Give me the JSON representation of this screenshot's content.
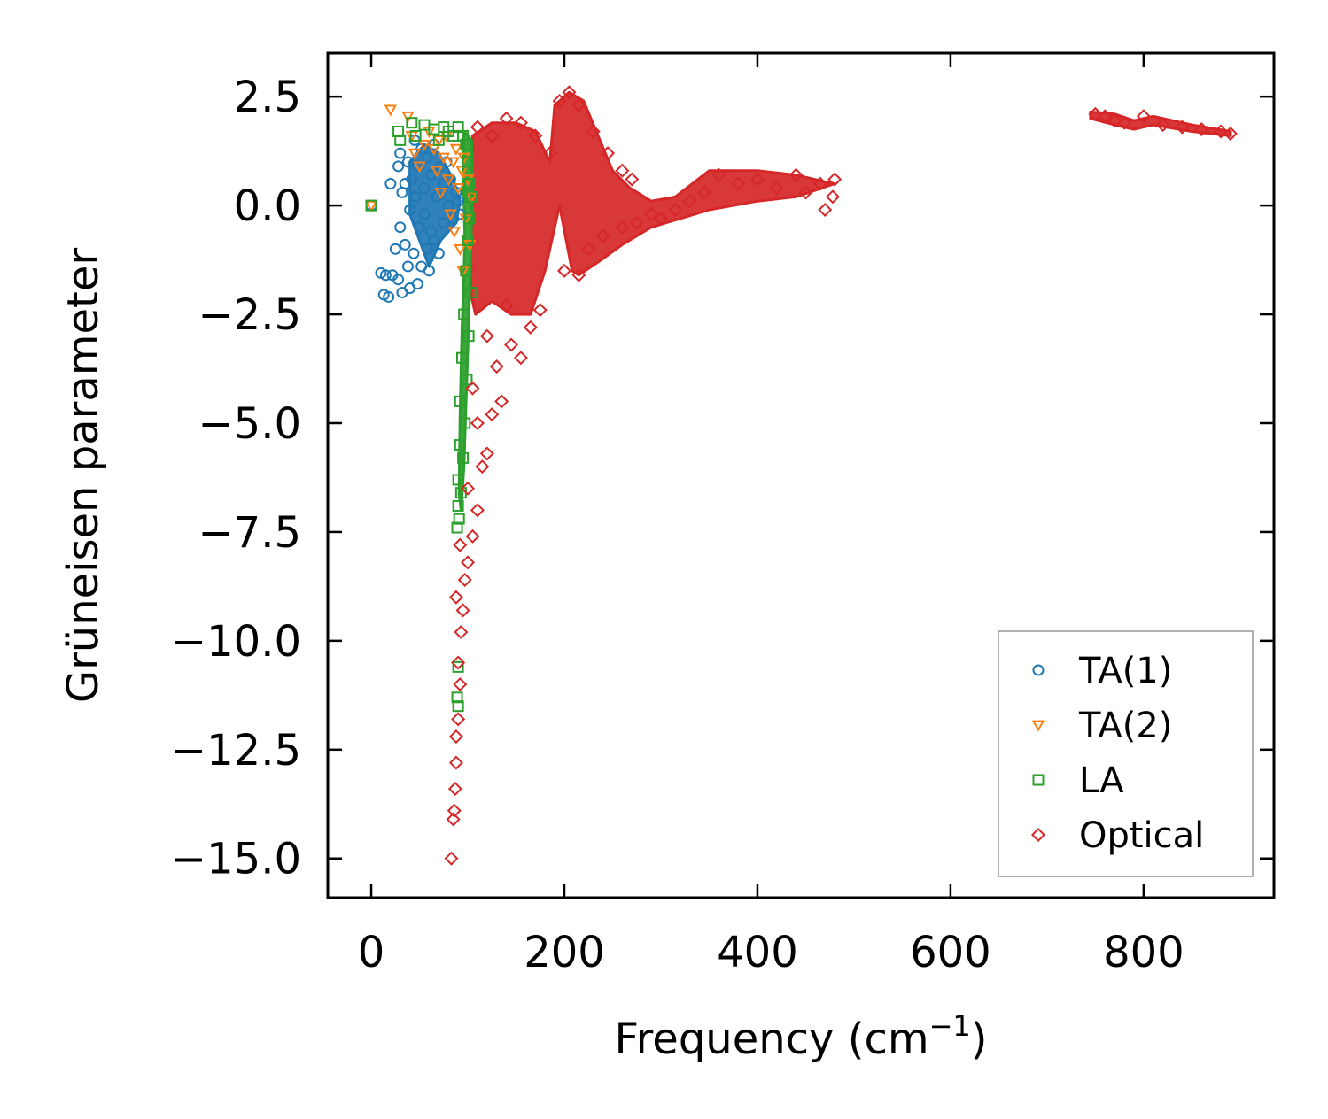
{
  "chart_data": {
    "type": "scatter",
    "title": "",
    "xlabel": "Frequency (cm",
    "xlabel_sup": "−1",
    "xlabel_suffix": ")",
    "ylabel": "Grüneisen parameter",
    "xlim": [
      -45,
      935
    ],
    "ylim": [
      -15.9,
      3.5
    ],
    "xticks": [
      0,
      200,
      400,
      600,
      800
    ],
    "xtick_labels": [
      "0",
      "200",
      "400",
      "600",
      "800"
    ],
    "yticks": [
      2.5,
      0,
      -2.5,
      -5,
      -7.5,
      -10,
      -12.5,
      -15
    ],
    "ytick_labels": [
      "2.5",
      "0.0",
      "−2.5",
      "−5.0",
      "−7.5",
      "−10.0",
      "−12.5",
      "−15.0"
    ],
    "grid": false,
    "legend_position": "bottom-right",
    "series": [
      {
        "name": "TA(1)",
        "color": "#1f77b4",
        "marker": "circle",
        "points": [
          [
            0,
            0
          ],
          [
            10,
            -1.55
          ],
          [
            13,
            -2.05
          ],
          [
            15,
            -1.6
          ],
          [
            18,
            -2.1
          ],
          [
            20,
            0.5
          ],
          [
            22,
            -1.6
          ],
          [
            25,
            -1.0
          ],
          [
            28,
            0.9
          ],
          [
            28,
            -1.7
          ],
          [
            30,
            1.2
          ],
          [
            30,
            -0.5
          ],
          [
            32,
            -2.0
          ],
          [
            32,
            0.3
          ],
          [
            35,
            -0.9
          ],
          [
            35,
            0.5
          ],
          [
            38,
            -1.4
          ],
          [
            38,
            1.0
          ],
          [
            40,
            -0.1
          ],
          [
            40,
            -1.9
          ],
          [
            42,
            0.6
          ],
          [
            44,
            -1.1
          ],
          [
            45,
            1.5
          ],
          [
            46,
            0.2
          ],
          [
            48,
            -1.8
          ],
          [
            48,
            0.9
          ],
          [
            50,
            -0.5
          ],
          [
            52,
            1.3
          ],
          [
            52,
            -1.4
          ],
          [
            55,
            0.4
          ],
          [
            55,
            -0.2
          ],
          [
            58,
            1.1
          ],
          [
            58,
            -1.0
          ],
          [
            60,
            -1.5
          ],
          [
            62,
            0.7
          ],
          [
            62,
            -0.6
          ],
          [
            65,
            1.4
          ],
          [
            65,
            -0.8
          ],
          [
            68,
            0.2
          ],
          [
            70,
            -1.1
          ],
          [
            72,
            0.9
          ],
          [
            75,
            0.5
          ],
          [
            75,
            -0.4
          ],
          [
            78,
            1.0
          ],
          [
            80,
            0.0
          ],
          [
            82,
            0.6
          ],
          [
            85,
            -0.3
          ],
          [
            88,
            0.3
          ],
          [
            90,
            0.1
          ],
          [
            92,
            -0.2
          ]
        ]
      },
      {
        "name": "TA(2)",
        "color": "#ff7f0e",
        "marker": "triangle-down",
        "points": [
          [
            0,
            0
          ],
          [
            20,
            2.2
          ],
          [
            38,
            2.05
          ],
          [
            42,
            1.6
          ],
          [
            45,
            1.2
          ],
          [
            50,
            0.9
          ],
          [
            55,
            1.4
          ],
          [
            60,
            1.7
          ],
          [
            65,
            1.3
          ],
          [
            68,
            0.8
          ],
          [
            70,
            1.5
          ],
          [
            72,
            0.3
          ],
          [
            75,
            1.1
          ],
          [
            78,
            1.6
          ],
          [
            80,
            0.6
          ],
          [
            82,
            -0.2
          ],
          [
            85,
            1.0
          ],
          [
            86,
            -0.6
          ],
          [
            88,
            1.3
          ],
          [
            90,
            0.4
          ],
          [
            92,
            -1.0
          ],
          [
            94,
            0.8
          ],
          [
            95,
            -1.5
          ],
          [
            96,
            1.1
          ],
          [
            98,
            -0.3
          ],
          [
            100,
            0.6
          ],
          [
            102,
            -0.9
          ],
          [
            104,
            0.2
          ]
        ]
      },
      {
        "name": "LA",
        "color": "#2ca02c",
        "marker": "square",
        "points": [
          [
            0,
            0
          ],
          [
            28,
            1.7
          ],
          [
            30,
            1.5
          ],
          [
            42,
            1.9
          ],
          [
            46,
            1.6
          ],
          [
            55,
            1.85
          ],
          [
            65,
            1.75
          ],
          [
            70,
            1.5
          ],
          [
            75,
            1.8
          ],
          [
            80,
            1.7
          ],
          [
            85,
            1.6
          ],
          [
            90,
            1.8
          ],
          [
            95,
            1.6
          ],
          [
            98,
            1.4
          ],
          [
            100,
            1.0
          ],
          [
            102,
            0.5
          ],
          [
            104,
            0.2
          ],
          [
            100,
            -0.8
          ],
          [
            98,
            -1.5
          ],
          [
            96,
            -2.5
          ],
          [
            94,
            -3.5
          ],
          [
            92,
            -4.5
          ],
          [
            92,
            -5.5
          ],
          [
            90,
            -6.3
          ],
          [
            90,
            -6.9
          ],
          [
            89,
            -7.4
          ],
          [
            90,
            -10.6
          ],
          [
            89,
            -11.3
          ],
          [
            90,
            -11.5
          ],
          [
            102,
            -0.3
          ],
          [
            103,
            -2.0
          ],
          [
            101,
            -3.0
          ],
          [
            99,
            -4.0
          ],
          [
            97,
            -5.0
          ],
          [
            95,
            -5.8
          ],
          [
            93,
            -6.6
          ],
          [
            91,
            -7.2
          ]
        ]
      },
      {
        "name": "Optical",
        "color": "#d62728",
        "marker": "diamond",
        "points": [
          [
            83,
            -15.0
          ],
          [
            85,
            -14.1
          ],
          [
            86,
            -13.9
          ],
          [
            87,
            -13.4
          ],
          [
            88,
            -12.8
          ],
          [
            88,
            -12.2
          ],
          [
            90,
            -11.8
          ],
          [
            92,
            -11.0
          ],
          [
            90,
            -10.5
          ],
          [
            93,
            -9.8
          ],
          [
            95,
            -9.3
          ],
          [
            88,
            -9.0
          ],
          [
            97,
            -8.6
          ],
          [
            100,
            -8.2
          ],
          [
            92,
            -7.8
          ],
          [
            105,
            -7.6
          ],
          [
            110,
            -7.0
          ],
          [
            100,
            -6.5
          ],
          [
            115,
            -6.0
          ],
          [
            120,
            -5.7
          ],
          [
            110,
            -5.0
          ],
          [
            125,
            -4.8
          ],
          [
            135,
            -4.5
          ],
          [
            105,
            -4.2
          ],
          [
            130,
            -3.7
          ],
          [
            155,
            -3.5
          ],
          [
            145,
            -3.2
          ],
          [
            120,
            -3.0
          ],
          [
            165,
            -2.8
          ],
          [
            140,
            -2.3
          ],
          [
            175,
            -2.4
          ],
          [
            200,
            -1.5
          ],
          [
            215,
            -1.6
          ],
          [
            225,
            -1.0
          ],
          [
            240,
            -0.7
          ],
          [
            260,
            -0.5
          ],
          [
            275,
            -0.4
          ],
          [
            290,
            -0.2
          ],
          [
            300,
            -0.3
          ],
          [
            315,
            -0.1
          ],
          [
            330,
            0.1
          ],
          [
            345,
            0.3
          ],
          [
            360,
            0.7
          ],
          [
            380,
            0.5
          ],
          [
            400,
            0.6
          ],
          [
            420,
            0.4
          ],
          [
            440,
            0.7
          ],
          [
            450,
            0.3
          ],
          [
            465,
            0.5
          ],
          [
            470,
            -0.1
          ],
          [
            478,
            0.2
          ],
          [
            480,
            0.6
          ],
          [
            750,
            2.1
          ],
          [
            760,
            2.05
          ],
          [
            770,
            1.95
          ],
          [
            780,
            1.9
          ],
          [
            800,
            2.05
          ],
          [
            820,
            1.85
          ],
          [
            840,
            1.8
          ],
          [
            860,
            1.75
          ],
          [
            880,
            1.7
          ],
          [
            890,
            1.65
          ],
          [
            110,
            1.8
          ],
          [
            125,
            1.6
          ],
          [
            140,
            2.0
          ],
          [
            155,
            1.9
          ],
          [
            170,
            1.6
          ],
          [
            185,
            1.2
          ],
          [
            195,
            2.4
          ],
          [
            205,
            2.6
          ],
          [
            215,
            2.3
          ],
          [
            230,
            1.7
          ],
          [
            245,
            1.2
          ],
          [
            260,
            0.8
          ],
          [
            270,
            0.6
          ]
        ]
      }
    ]
  },
  "dense_bands": [
    {
      "series": "Optical",
      "color": "#d62728",
      "polygon": [
        [
          105,
          1.6
        ],
        [
          125,
          1.9
        ],
        [
          150,
          1.9
        ],
        [
          170,
          1.7
        ],
        [
          185,
          1.0
        ],
        [
          190,
          2.3
        ],
        [
          205,
          2.6
        ],
        [
          220,
          2.4
        ],
        [
          235,
          1.6
        ],
        [
          250,
          0.8
        ],
        [
          268,
          0.4
        ],
        [
          290,
          0.1
        ],
        [
          315,
          0.2
        ],
        [
          350,
          0.8
        ],
        [
          400,
          0.8
        ],
        [
          440,
          0.7
        ],
        [
          478,
          0.5
        ],
        [
          480,
          0.5
        ],
        [
          440,
          0.2
        ],
        [
          400,
          0.1
        ],
        [
          350,
          -0.1
        ],
        [
          320,
          -0.3
        ],
        [
          290,
          -0.5
        ],
        [
          260,
          -0.9
        ],
        [
          235,
          -1.3
        ],
        [
          215,
          -1.6
        ],
        [
          208,
          -1.5
        ],
        [
          195,
          0.0
        ],
        [
          180,
          -1.5
        ],
        [
          165,
          -2.5
        ],
        [
          145,
          -2.5
        ],
        [
          125,
          -2.2
        ],
        [
          108,
          -2.5
        ],
        [
          103,
          -2.0
        ]
      ]
    },
    {
      "series": "Optical",
      "color": "#d62728",
      "polygon": [
        [
          745,
          2.15
        ],
        [
          770,
          2.1
        ],
        [
          790,
          1.95
        ],
        [
          810,
          2.05
        ],
        [
          850,
          1.85
        ],
        [
          890,
          1.7
        ],
        [
          890,
          1.6
        ],
        [
          850,
          1.7
        ],
        [
          810,
          1.85
        ],
        [
          790,
          1.75
        ],
        [
          770,
          1.85
        ],
        [
          745,
          2.0
        ]
      ]
    },
    {
      "series": "TA(1)",
      "color": "#1f77b4",
      "polygon": [
        [
          40,
          1.0
        ],
        [
          55,
          1.4
        ],
        [
          70,
          1.2
        ],
        [
          85,
          0.6
        ],
        [
          92,
          0.1
        ],
        [
          88,
          -0.4
        ],
        [
          72,
          -0.8
        ],
        [
          60,
          -1.4
        ],
        [
          50,
          -0.8
        ],
        [
          40,
          -0.2
        ]
      ]
    },
    {
      "series": "LA",
      "color": "#2ca02c",
      "polygon": [
        [
          96,
          1.7
        ],
        [
          104,
          1.5
        ],
        [
          105,
          0.5
        ],
        [
          102,
          -2.0
        ],
        [
          99,
          -4.0
        ],
        [
          96,
          -6.0
        ],
        [
          93,
          -7.0
        ],
        [
          91,
          -6.6
        ],
        [
          92,
          -4.8
        ],
        [
          94,
          -2.8
        ],
        [
          97,
          -0.8
        ],
        [
          95,
          1.0
        ]
      ]
    }
  ]
}
